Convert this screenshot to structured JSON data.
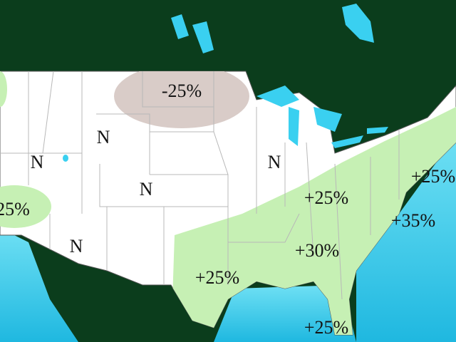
{
  "map": {
    "labels": [
      {
        "text": "-25%"
      },
      {
        "text": "N"
      },
      {
        "text": "N"
      },
      {
        "text": "N"
      },
      {
        "text": "N"
      },
      {
        "text": "N"
      },
      {
        "text": "25%"
      },
      {
        "text": "+25%"
      },
      {
        "text": "+25%"
      },
      {
        "text": "+35%"
      },
      {
        "text": "+30%"
      },
      {
        "text": "+25%"
      },
      {
        "text": "+25%"
      }
    ]
  }
}
